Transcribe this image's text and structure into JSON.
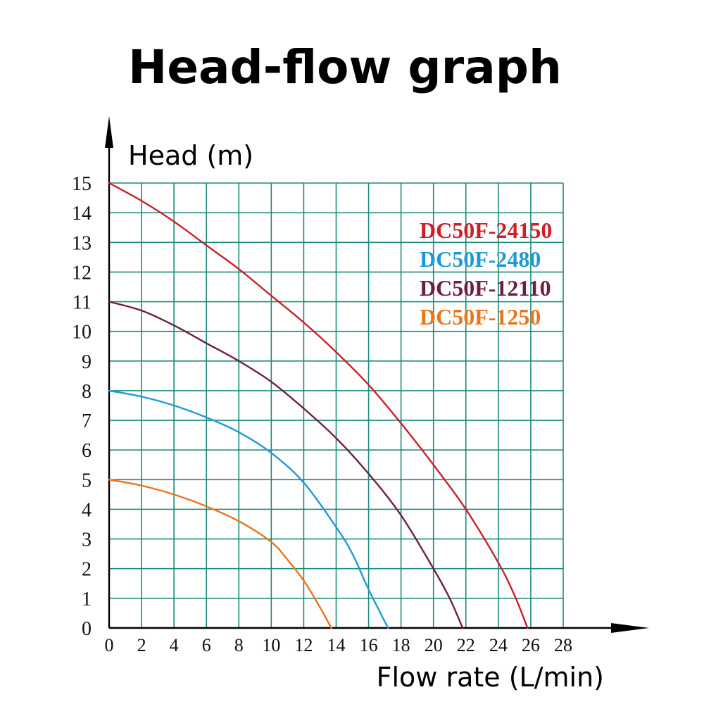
{
  "chart_data": {
    "type": "line",
    "title": "Head-flow graph",
    "xlabel": "Flow rate (L/min)",
    "ylabel": "Head (m)",
    "xlim": [
      0,
      28
    ],
    "ylim": [
      0,
      15
    ],
    "x_ticks": [
      0,
      2,
      4,
      6,
      8,
      10,
      12,
      14,
      16,
      18,
      20,
      22,
      24,
      26,
      28
    ],
    "y_ticks": [
      0,
      1,
      2,
      3,
      4,
      5,
      6,
      7,
      8,
      9,
      10,
      11,
      12,
      13,
      14,
      15
    ],
    "grid": true,
    "legend_position": "top-right",
    "series": [
      {
        "name": "DC50F-24150",
        "color": "#cc1f28",
        "x": [
          0,
          2,
          4,
          6,
          8,
          10,
          12,
          14,
          16,
          18,
          20,
          22,
          24,
          25,
          25.8
        ],
        "y": [
          15,
          14.4,
          13.7,
          12.9,
          12.1,
          11.2,
          10.3,
          9.3,
          8.2,
          6.9,
          5.5,
          4.0,
          2.2,
          1.1,
          0
        ]
      },
      {
        "name": "DC50F-2480",
        "color": "#1e9ad6",
        "x": [
          0,
          2,
          4,
          6,
          8,
          10,
          12,
          14,
          15,
          16,
          17.2
        ],
        "y": [
          8,
          7.8,
          7.5,
          7.1,
          6.6,
          5.9,
          4.9,
          3.4,
          2.5,
          1.3,
          0
        ]
      },
      {
        "name": "DC50F-12110",
        "color": "#6e1d45",
        "x": [
          0,
          2,
          4,
          6,
          8,
          10,
          12,
          14,
          16,
          18,
          20,
          21,
          21.8
        ],
        "y": [
          11,
          10.7,
          10.2,
          9.6,
          9.0,
          8.3,
          7.4,
          6.4,
          5.2,
          3.8,
          2.0,
          1.0,
          0
        ]
      },
      {
        "name": "DC50F-1250",
        "color": "#e8761e",
        "x": [
          0,
          2,
          4,
          6,
          8,
          10,
          11,
          12,
          13,
          13.7
        ],
        "y": [
          5,
          4.8,
          4.5,
          4.1,
          3.6,
          2.9,
          2.3,
          1.6,
          0.7,
          0
        ]
      }
    ]
  }
}
